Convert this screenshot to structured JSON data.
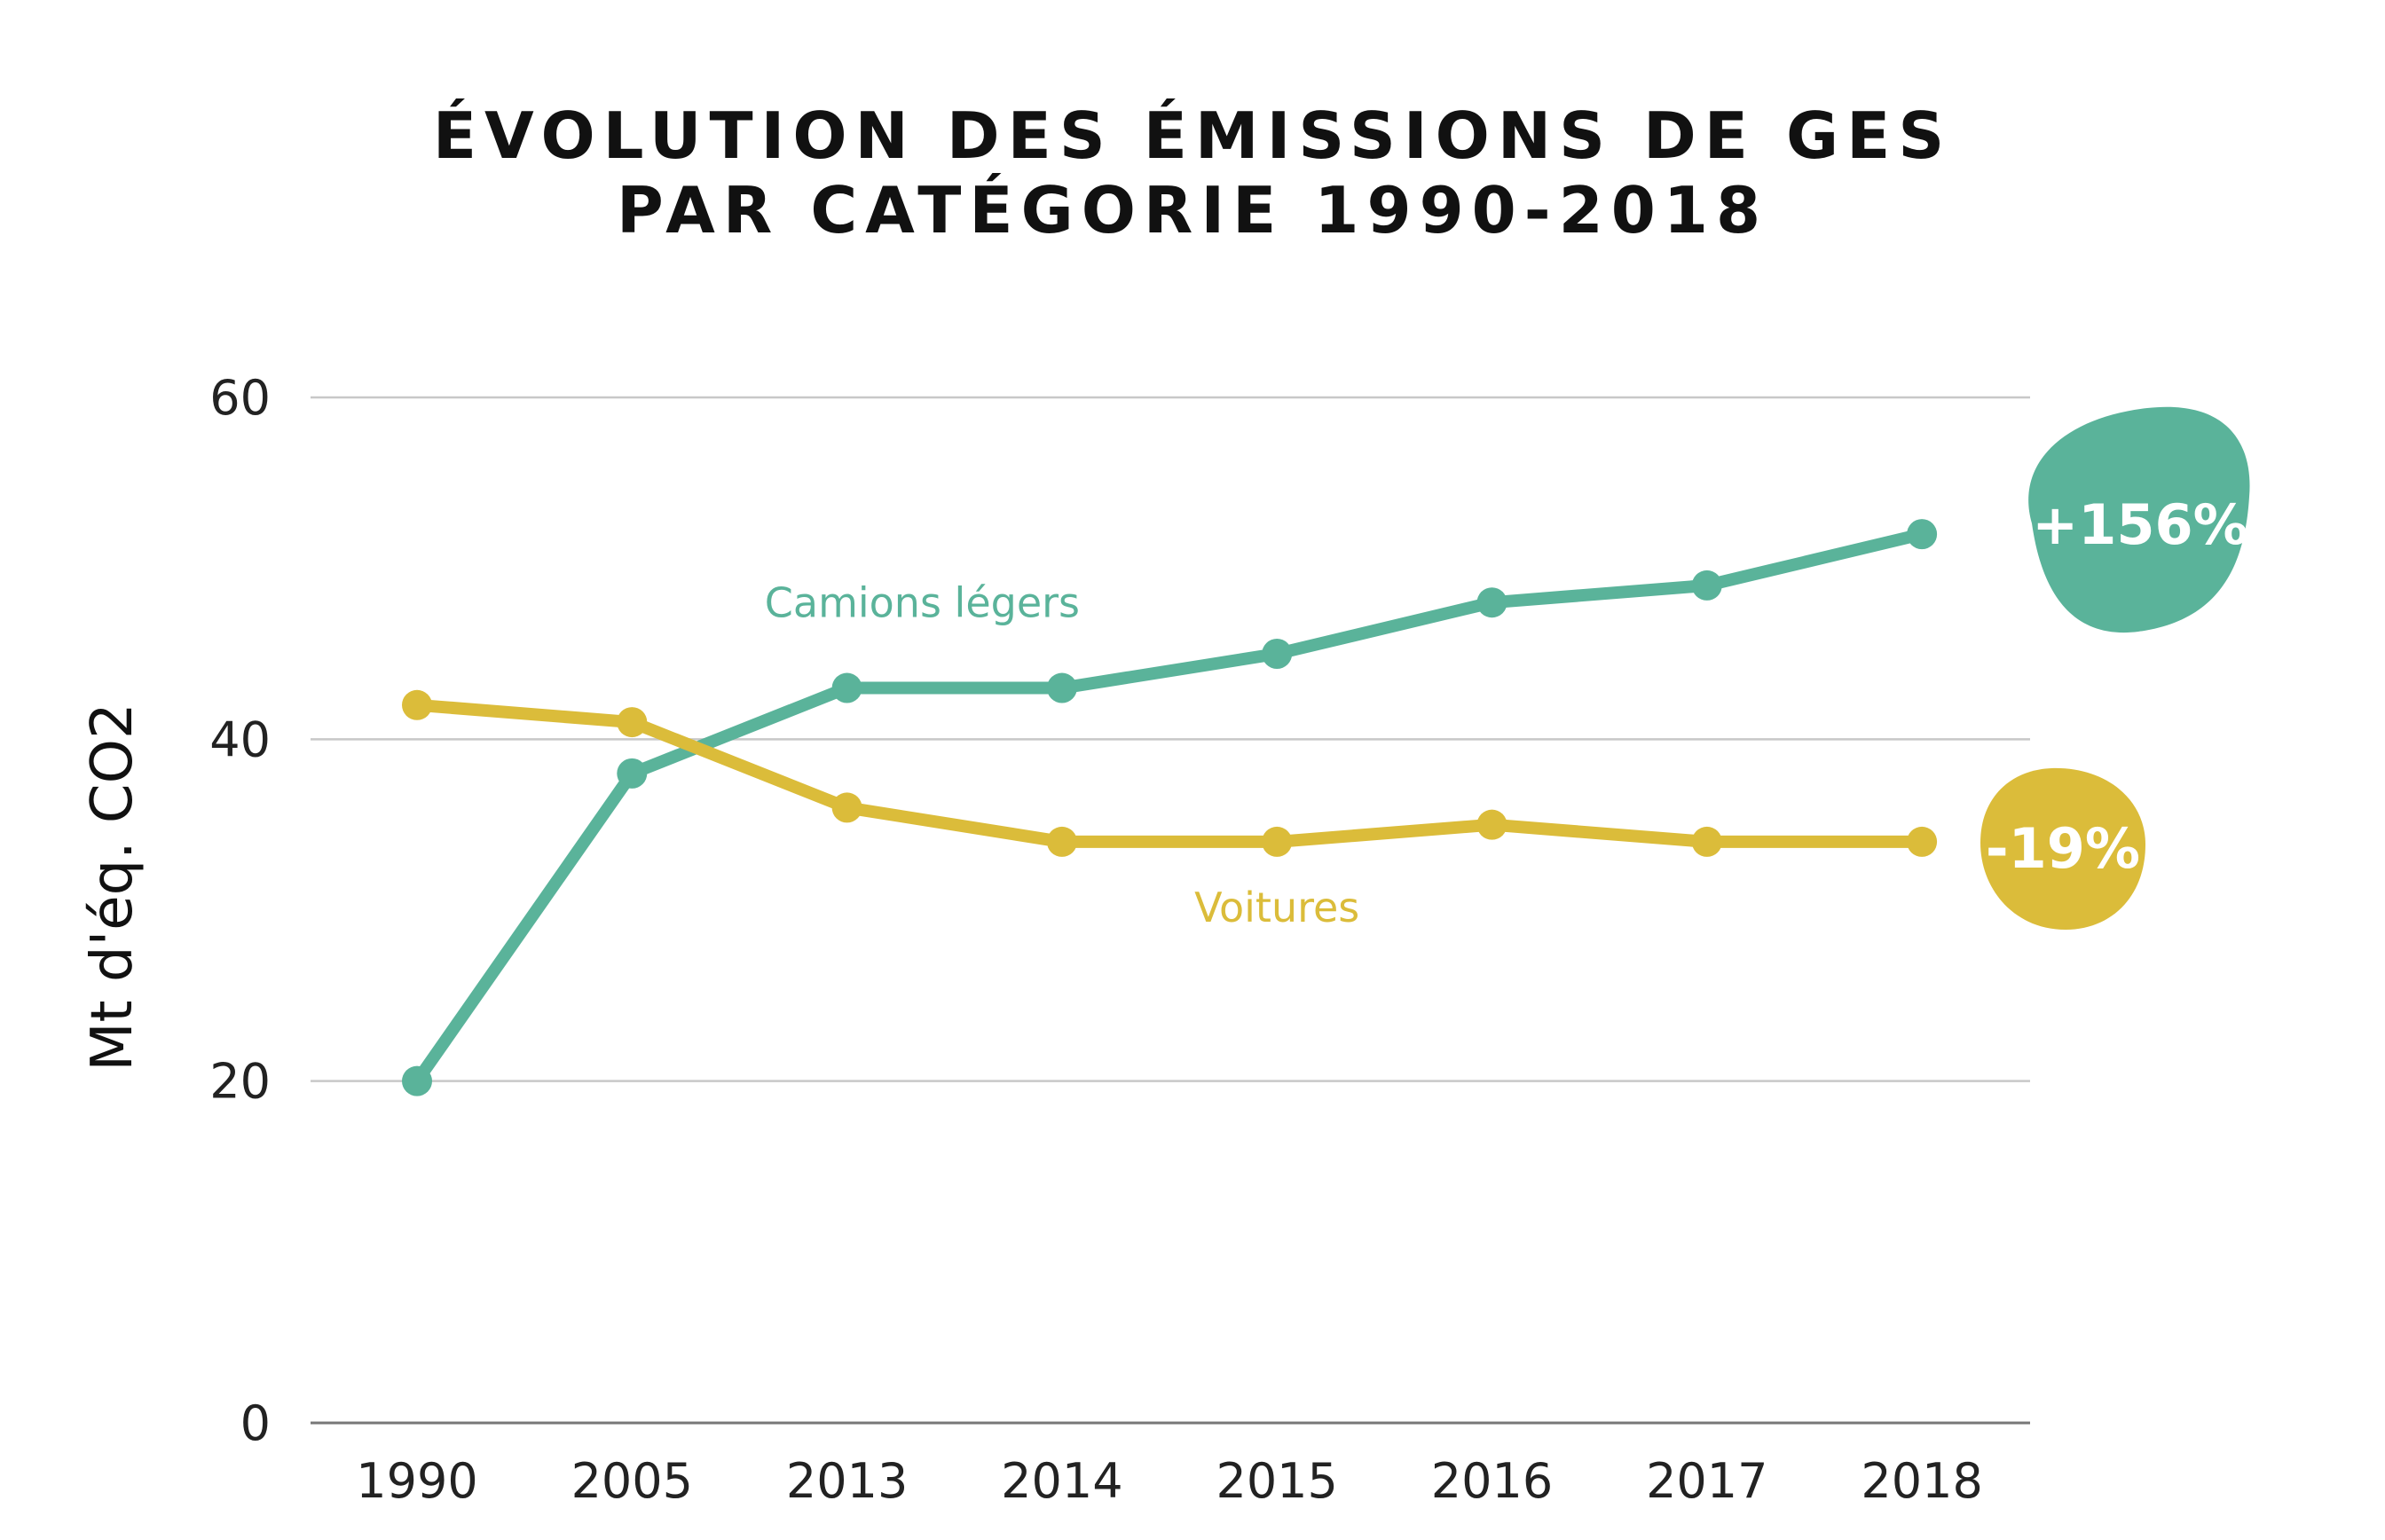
{
  "chart_data": {
    "type": "line",
    "title_lines": [
      "ÉVOLUTION DES ÉMISSIONS DE GES",
      "PAR CATÉGORIE 1990-2018"
    ],
    "xlabel": "",
    "ylabel": "Mt d'éq. CO2",
    "categories": [
      "1990",
      "2005",
      "2013",
      "2014",
      "2015",
      "2016",
      "2017",
      "2018"
    ],
    "ylim": [
      0,
      60
    ],
    "yticks": [
      "0",
      "20",
      "40",
      "60"
    ],
    "grid": true,
    "series": [
      {
        "name": "Camions légers",
        "color": "#5ab39a",
        "values": [
          20,
          38,
          43,
          43,
          45,
          48,
          49,
          52
        ],
        "change_label": "+156%"
      },
      {
        "name": "Voitures",
        "color": "#dbbc3a",
        "values": [
          42,
          41,
          36,
          34,
          34,
          35,
          34,
          34
        ],
        "change_label": "-19%"
      }
    ]
  }
}
